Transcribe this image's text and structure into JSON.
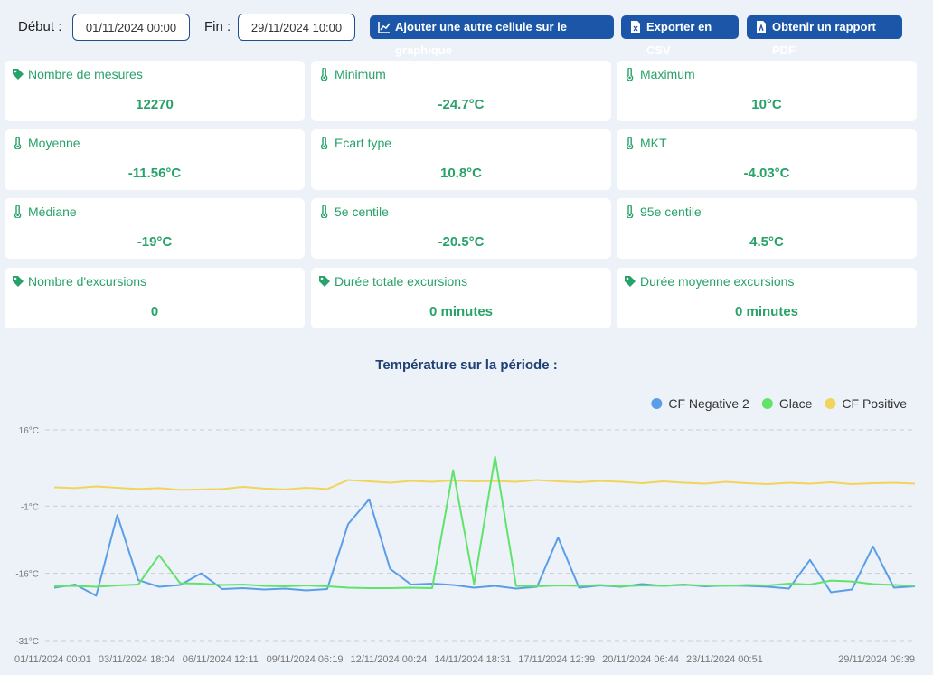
{
  "toolbar": {
    "start_label": "Début :",
    "start_value": "01/11/2024 00:00",
    "end_label": "Fin :",
    "end_value": "29/11/2024 10:00",
    "buttons": [
      "Ajouter une autre cellule sur le graphique",
      "Exporter en CSV",
      "Obtenir un rapport PDF"
    ]
  },
  "stats": [
    {
      "icon": "tag",
      "label": "Nombre de mesures",
      "value": "12270"
    },
    {
      "icon": "thermometer",
      "label": "Minimum",
      "value": "-24.7°C"
    },
    {
      "icon": "thermometer",
      "label": "Maximum",
      "value": "10°C"
    },
    {
      "icon": "thermometer",
      "label": "Moyenne",
      "value": "-11.56°C"
    },
    {
      "icon": "thermometer",
      "label": "Ecart type",
      "value": "10.8°C"
    },
    {
      "icon": "thermometer",
      "label": "MKT",
      "value": "-4.03°C"
    },
    {
      "icon": "thermometer",
      "label": "Médiane",
      "value": "-19°C"
    },
    {
      "icon": "thermometer",
      "label": "5e centile",
      "value": "-20.5°C"
    },
    {
      "icon": "thermometer",
      "label": "95e centile",
      "value": "4.5°C"
    },
    {
      "icon": "tag",
      "label": "Nombre d'excursions",
      "value": "0"
    },
    {
      "icon": "tag",
      "label": "Durée totale excursions",
      "value": "0 minutes"
    },
    {
      "icon": "tag",
      "label": "Durée moyenne excursions",
      "value": "0 minutes"
    }
  ],
  "chart_data": {
    "type": "line",
    "title": "Température sur la période :",
    "categories": [
      "01/11/2024 00:01",
      null,
      null,
      null,
      "03/11/2024 18:04",
      null,
      null,
      null,
      "06/11/2024 12:11",
      null,
      null,
      null,
      "09/11/2024 06:19",
      null,
      null,
      null,
      "12/11/2024 00:24",
      null,
      null,
      null,
      "14/11/2024 18:31",
      null,
      null,
      null,
      "17/11/2024 12:39",
      null,
      null,
      null,
      "20/11/2024 06:44",
      null,
      null,
      null,
      "23/11/2024 00:51",
      null,
      null,
      null,
      null,
      null,
      null,
      null,
      null,
      "29/11/2024 09:39"
    ],
    "series": [
      {
        "name": "CF Negative 2",
        "color": "#5b9ee8",
        "values": [
          -19.2,
          -18.5,
          -21,
          -3,
          -17.5,
          -19,
          -18.6,
          -16,
          -19.5,
          -19.3,
          -19.6,
          -19.4,
          -19.8,
          -19.5,
          -5,
          0.5,
          -15,
          -18.5,
          -18.3,
          -18.6,
          -19.2,
          -18.8,
          -19.4,
          -19,
          -8,
          -19.2,
          -18.7,
          -19,
          -18.4,
          -18.8,
          -18.5,
          -18.9,
          -18.7,
          -18.8,
          -19,
          -19.4,
          -13,
          -20.2,
          -19.6,
          -10,
          -19.2,
          -18.9
        ]
      },
      {
        "name": "Glace",
        "color": "#5fe36a",
        "values": [
          -18.9,
          -18.8,
          -19,
          -18.7,
          -18.5,
          -12,
          -18.2,
          -18.3,
          -18.6,
          -18.5,
          -18.8,
          -18.9,
          -18.7,
          -18.9,
          -19.2,
          -19.3,
          -19.3,
          -19.2,
          -19.3,
          7,
          -18.4,
          10,
          -18.8,
          -18.9,
          -18.7,
          -18.8,
          -18.6,
          -18.9,
          -18.7,
          -18.8,
          -18.6,
          -18.7,
          -18.8,
          -18.6,
          -18.7,
          -18.3,
          -18.5,
          -17.6,
          -17.8,
          -18.4,
          -18.6,
          -18.8
        ]
      },
      {
        "name": "CF Positive",
        "color": "#f2d45c",
        "values": [
          3.2,
          3.0,
          3.4,
          3.1,
          2.8,
          3.0,
          2.6,
          2.7,
          2.8,
          3.3,
          2.9,
          2.7,
          3.1,
          2.8,
          4.8,
          4.5,
          4.2,
          4.6,
          4.4,
          4.7,
          4.5,
          4.6,
          4.4,
          4.8,
          4.5,
          4.3,
          4.6,
          4.4,
          4.1,
          4.5,
          4.2,
          4.0,
          4.4,
          4.1,
          3.9,
          4.2,
          4.0,
          4.3,
          3.9,
          4.1,
          4.2,
          4.0
        ]
      }
    ],
    "ylim": [
      -31,
      16
    ],
    "yticks": [
      {
        "value": -31,
        "label": "-31°C"
      },
      {
        "value": -16,
        "label": "-16°C"
      },
      {
        "value": -1,
        "label": "-1°C"
      },
      {
        "value": 16,
        "label": "16°C"
      }
    ],
    "grid": true,
    "legend": "top-right"
  }
}
